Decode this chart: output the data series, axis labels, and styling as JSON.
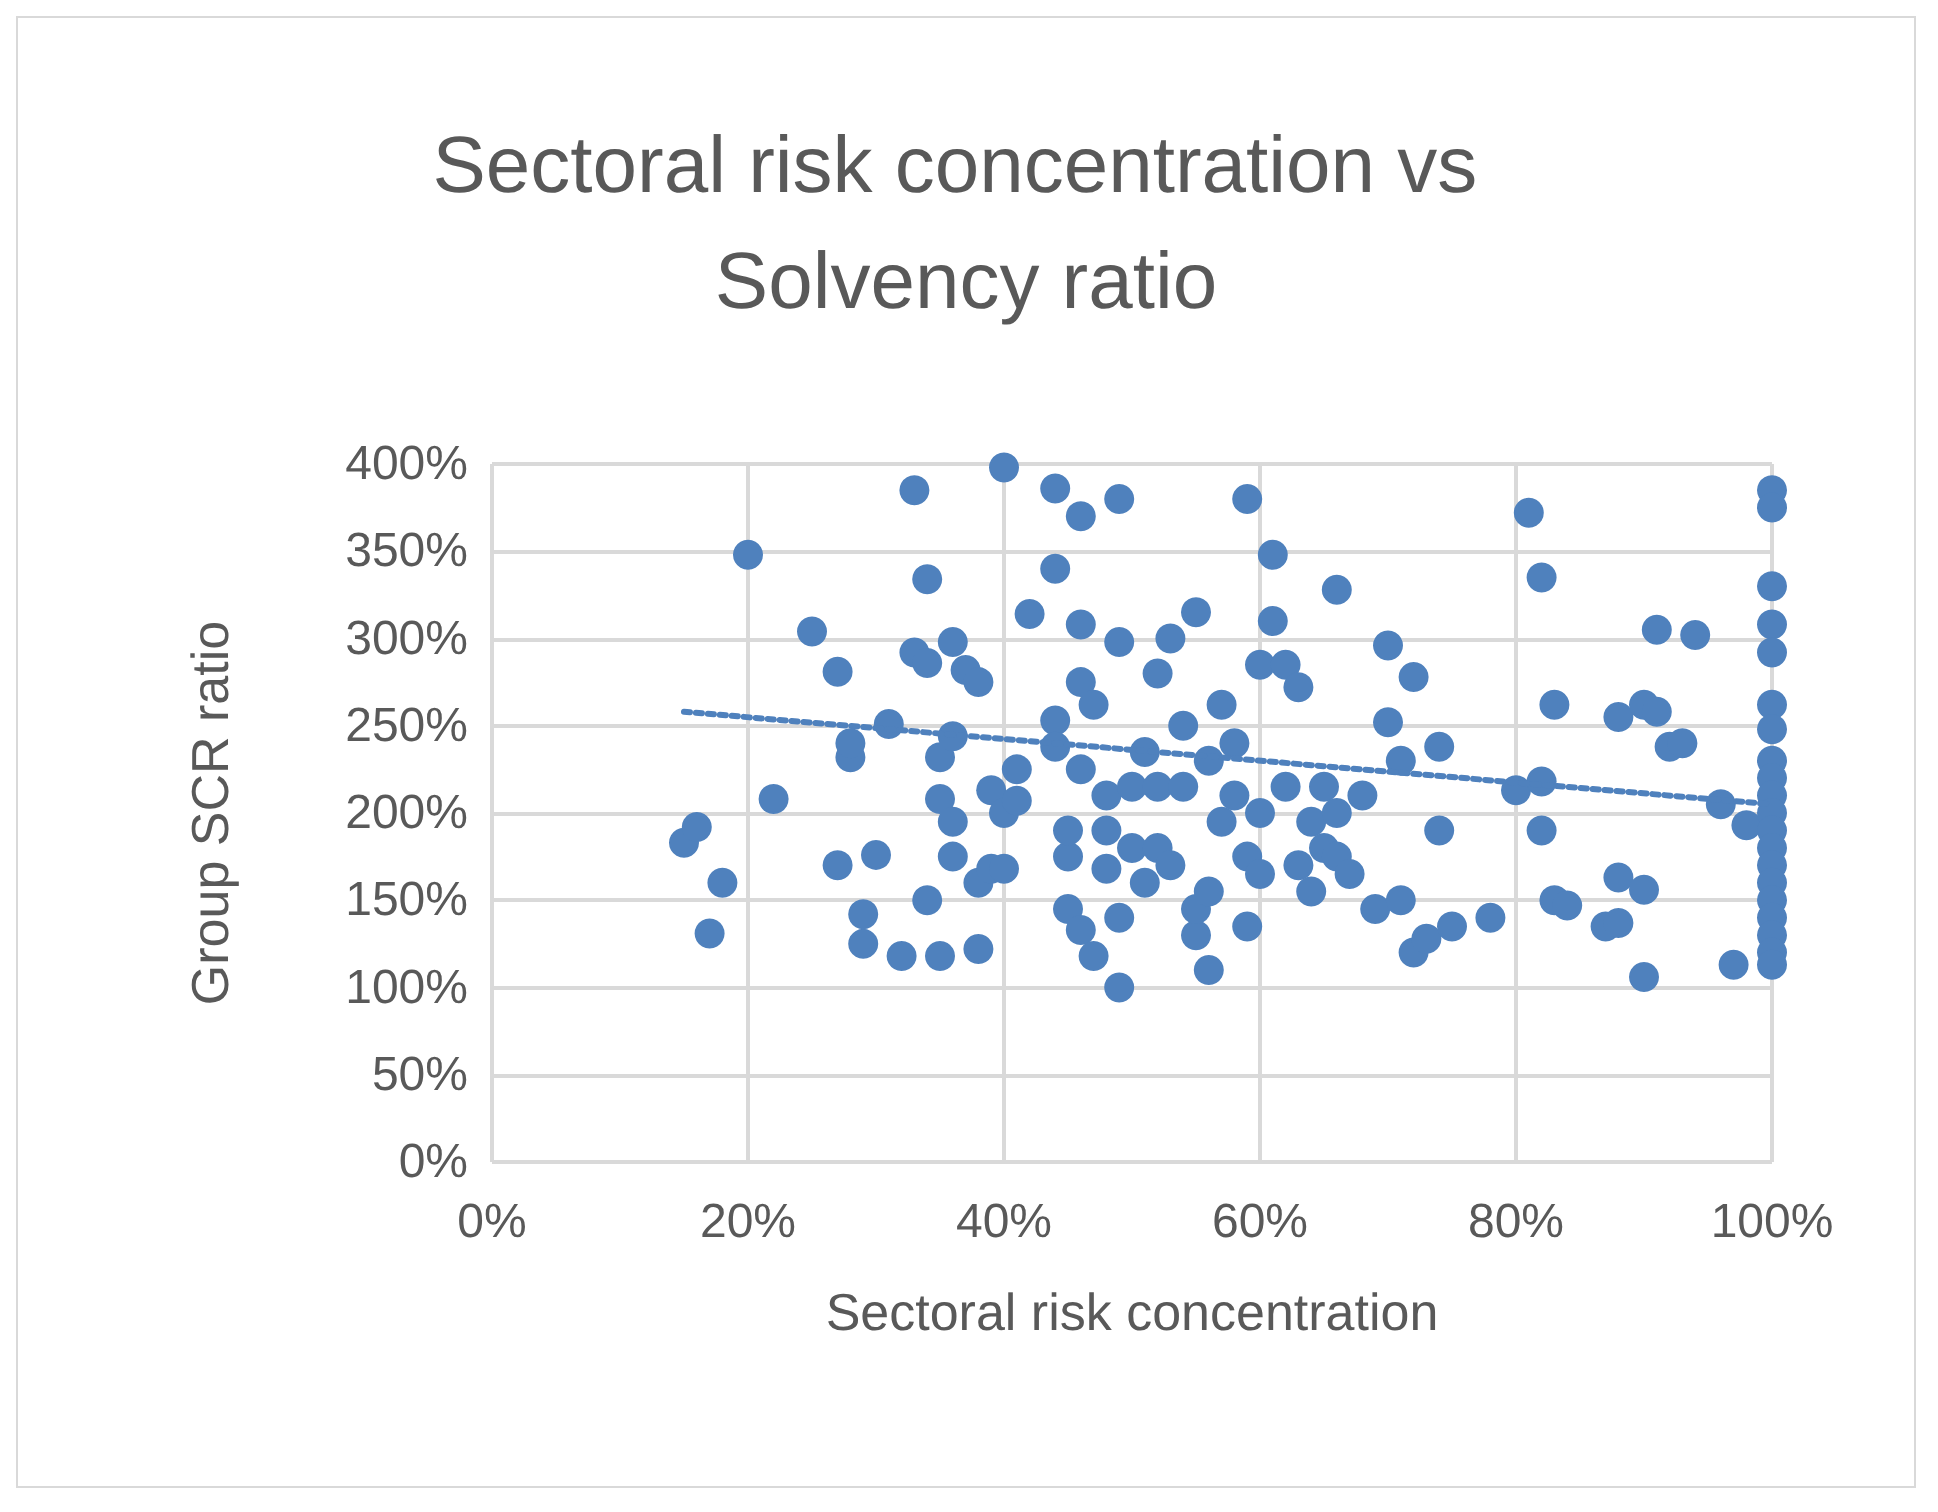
{
  "chart_data": {
    "type": "scatter",
    "title": "Sectoral risk concentration vs Solvency ratio",
    "xlabel": "Sectoral risk concentration",
    "ylabel": "Group SCR ratio",
    "xlim": [
      0,
      100
    ],
    "xticks": [
      {
        "value": 0,
        "label": "0%"
      },
      {
        "value": 20,
        "label": "20%"
      },
      {
        "value": 40,
        "label": "40%"
      },
      {
        "value": 60,
        "label": "60%"
      },
      {
        "value": 80,
        "label": "80%"
      },
      {
        "value": 100,
        "label": "100%"
      }
    ],
    "ylim": [
      0,
      400
    ],
    "yticks": [
      {
        "value": 0,
        "label": "0%"
      },
      {
        "value": 50,
        "label": "50%"
      },
      {
        "value": 100,
        "label": "100%"
      },
      {
        "value": 150,
        "label": "150%"
      },
      {
        "value": 200,
        "label": "200%"
      },
      {
        "value": 250,
        "label": "250%"
      },
      {
        "value": 300,
        "label": "300%"
      },
      {
        "value": 350,
        "label": "350%"
      },
      {
        "value": 400,
        "label": "400%"
      }
    ],
    "grid": true,
    "marker": "circle",
    "series": [
      {
        "color": "#4f81bd",
        "x": [
          15,
          16,
          17,
          18,
          20,
          22,
          25,
          27,
          27,
          28,
          28,
          29,
          29,
          30,
          31,
          32,
          33,
          33,
          34,
          34,
          34,
          35,
          35,
          35,
          36,
          36,
          36,
          36,
          37,
          38,
          38,
          38,
          39,
          39,
          40,
          40,
          40,
          41,
          41,
          42,
          44,
          44,
          44,
          44,
          45,
          45,
          45,
          46,
          46,
          46,
          46,
          46,
          47,
          47,
          48,
          48,
          48,
          49,
          49,
          49,
          49,
          50,
          50,
          51,
          51,
          52,
          52,
          52,
          53,
          53,
          54,
          54,
          55,
          55,
          55,
          56,
          56,
          56,
          57,
          57,
          58,
          58,
          59,
          59,
          59,
          60,
          60,
          60,
          61,
          61,
          62,
          62,
          63,
          63,
          64,
          64,
          65,
          65,
          66,
          66,
          66,
          67,
          68,
          69,
          70,
          70,
          71,
          71,
          72,
          72,
          73,
          74,
          74,
          75,
          78,
          80,
          81,
          82,
          82,
          82,
          83,
          83,
          84,
          87,
          88,
          88,
          88,
          90,
          90,
          90,
          91,
          91,
          92,
          93,
          94,
          96,
          97,
          98,
          100,
          100,
          100,
          100,
          100,
          100,
          100,
          100,
          100,
          100,
          100,
          100,
          100,
          100,
          100,
          100,
          100,
          100,
          100,
          100
        ],
        "values": [
          183,
          192,
          131,
          160,
          348,
          208,
          304,
          170,
          281,
          232,
          240,
          125,
          142,
          176,
          251,
          118,
          385,
          292,
          334,
          150,
          286,
          118,
          232,
          208,
          175,
          298,
          244,
          195,
          282,
          275,
          122,
          160,
          168,
          213,
          398,
          168,
          200,
          207,
          225,
          314,
          386,
          340,
          253,
          238,
          175,
          190,
          145,
          370,
          308,
          275,
          225,
          133,
          262,
          118,
          210,
          190,
          168,
          380,
          298,
          140,
          100,
          215,
          180,
          235,
          160,
          280,
          215,
          180,
          300,
          170,
          250,
          215,
          315,
          130,
          145,
          110,
          155,
          230,
          262,
          195,
          240,
          210,
          380,
          135,
          175,
          285,
          200,
          165,
          348,
          310,
          285,
          215,
          272,
          170,
          195,
          155,
          215,
          180,
          328,
          200,
          175,
          165,
          210,
          145,
          296,
          252,
          230,
          150,
          278,
          120,
          128,
          238,
          190,
          135,
          140,
          213,
          372,
          335,
          218,
          190,
          262,
          150,
          147,
          135,
          255,
          163,
          137,
          106,
          262,
          156,
          258,
          305,
          238,
          240,
          302,
          205,
          113,
          193,
          385,
          375,
          330,
          308,
          292,
          262,
          248,
          230,
          220,
          210,
          200,
          190,
          180,
          170,
          160,
          150,
          140,
          130,
          120,
          113
        ]
      },
      {
        "type": "line",
        "color": "#4f81bd",
        "line_style": "dotted",
        "marker": "none",
        "x": [
          15,
          100
        ],
        "values": [
          258,
          205
        ]
      }
    ]
  }
}
